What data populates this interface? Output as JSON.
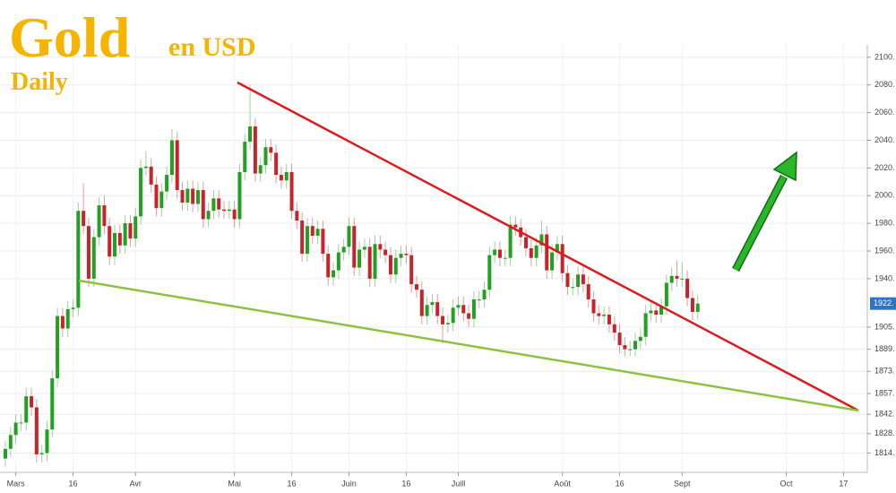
{
  "chart_data": {
    "type": "candlestick",
    "title": "Gold",
    "subtitle": "en USD",
    "period": "Daily",
    "up_color": "#22a022",
    "down_color": "#c8232b",
    "grid": true,
    "ylim": [
      1800,
      2109
    ],
    "yticks": [
      {
        "value": 2100,
        "label": "2100."
      },
      {
        "value": 2080,
        "label": "2080."
      },
      {
        "value": 2060,
        "label": "2060."
      },
      {
        "value": 2040,
        "label": "2040."
      },
      {
        "value": 2020,
        "label": "2020."
      },
      {
        "value": 2000,
        "label": "2000."
      },
      {
        "value": 1980,
        "label": "1980."
      },
      {
        "value": 1960,
        "label": "1960."
      },
      {
        "value": 1940,
        "label": "1940."
      },
      {
        "value": 1905,
        "label": "1905."
      },
      {
        "value": 1889,
        "label": "1889."
      },
      {
        "value": 1873,
        "label": "1873."
      },
      {
        "value": 1857,
        "label": "1857."
      },
      {
        "value": 1842,
        "label": "1842."
      },
      {
        "value": 1828,
        "label": "1828."
      },
      {
        "value": 1814,
        "label": "1814."
      }
    ],
    "price_label": {
      "value": 1922,
      "label": "1922."
    },
    "categories": [
      null,
      null,
      "Mars",
      null,
      null,
      null,
      null,
      null,
      null,
      null,
      null,
      null,
      null,
      "16",
      null,
      null,
      null,
      null,
      null,
      null,
      null,
      null,
      null,
      null,
      null,
      "Avr",
      null,
      null,
      null,
      null,
      null,
      null,
      null,
      null,
      null,
      null,
      null,
      null,
      null,
      null,
      null,
      null,
      null,
      null,
      "Mai",
      null,
      null,
      null,
      null,
      null,
      null,
      null,
      null,
      null,
      null,
      "16",
      null,
      null,
      null,
      null,
      null,
      null,
      null,
      null,
      null,
      null,
      "Juin",
      null,
      null,
      null,
      null,
      null,
      null,
      null,
      null,
      null,
      null,
      "16",
      null,
      null,
      null,
      null,
      null,
      null,
      null,
      null,
      null,
      "Juill",
      null,
      null,
      null,
      null,
      null,
      null,
      null,
      null,
      null,
      null,
      null,
      null,
      null,
      null,
      null,
      null,
      null,
      null,
      null,
      "Août",
      null,
      null,
      null,
      null,
      null,
      null,
      null,
      null,
      null,
      null,
      "16",
      null,
      null,
      null,
      null,
      null,
      null,
      null,
      null,
      null,
      null,
      null,
      "Sept",
      null,
      null,
      null,
      null,
      null,
      null,
      null,
      null,
      null,
      null,
      null,
      null,
      null,
      null,
      null,
      null,
      null,
      null,
      null,
      "Oct",
      null,
      null,
      null,
      null,
      null,
      null,
      null,
      null,
      null,
      null,
      "17",
      null,
      null,
      null,
      null
    ],
    "open": [
      1810,
      1817,
      1827,
      1836,
      1836,
      1855,
      1847,
      1813,
      1814,
      1831,
      1868,
      1913,
      1904,
      1918,
      1919,
      1989,
      1978,
      1940,
      1970,
      1993,
      1978,
      1956,
      1973,
      1964,
      1980,
      1969,
      1985,
      2020,
      2021,
      2008,
      1991,
      2003,
      2015,
      2040,
      2004,
      1995,
      2005,
      1994,
      2004,
      1983,
      1989,
      1998,
      1990,
      1989,
      1990,
      1983,
      2017,
      2039,
      2050,
      2016,
      2022,
      2035,
      2031,
      2015,
      2011,
      2017,
      1989,
      1982,
      1958,
      1978,
      1971,
      1976,
      1958,
      1941,
      1946,
      1959,
      1963,
      1978,
      1948,
      1961,
      1963,
      1940,
      1965,
      1961,
      1957,
      1943,
      1955,
      1958,
      1957,
      1936,
      1932,
      1913,
      1921,
      1923,
      1913,
      1907,
      1908,
      1919,
      1921,
      1915,
      1911,
      1925,
      1925,
      1932,
      1957,
      1961,
      1955,
      1955,
      1979,
      1977,
      1970,
      1962,
      1955,
      1964,
      1972,
      1946,
      1959,
      1965,
      1944,
      1934,
      1934,
      1943,
      1936,
      1925,
      1915,
      1913,
      1914,
      1907,
      1901,
      1892,
      1889,
      1889,
      1895,
      1898,
      1915,
      1917,
      1914,
      1920,
      1937,
      1942,
      1940,
      1940,
      1926,
      1916,
      null,
      null,
      null,
      null,
      null,
      null,
      null,
      null,
      null,
      null,
      null,
      null,
      null,
      null,
      null,
      null,
      null,
      null,
      null,
      null,
      null,
      null,
      null,
      null,
      null,
      null,
      null,
      null,
      null,
      null,
      null,
      null
    ],
    "high": [
      1823,
      1833,
      1842,
      1842,
      1861,
      1861,
      1853,
      1820,
      1837,
      1874,
      1919,
      1919,
      1924,
      1925,
      1995,
      2009,
      1984,
      1976,
      1999,
      2000,
      1984,
      1979,
      1979,
      1986,
      1986,
      1991,
      2026,
      2032,
      2027,
      2014,
      2009,
      2021,
      2048,
      2046,
      2010,
      2011,
      2011,
      2010,
      2010,
      1995,
      2004,
      2004,
      1996,
      1996,
      1996,
      2023,
      2045,
      2080,
      2056,
      2028,
      2041,
      2041,
      2037,
      2021,
      2023,
      2023,
      1995,
      1988,
      1984,
      1984,
      1982,
      1982,
      1964,
      1952,
      1965,
      1969,
      1984,
      1984,
      1967,
      1969,
      1969,
      1971,
      1971,
      1967,
      1963,
      1961,
      1964,
      1964,
      1963,
      1942,
      1938,
      1927,
      1929,
      1929,
      1919,
      1914,
      1925,
      1927,
      1927,
      1921,
      1931,
      1931,
      1938,
      1963,
      1967,
      1967,
      1961,
      1985,
      1985,
      1983,
      1976,
      1968,
      1970,
      1982,
      1978,
      1965,
      1971,
      1971,
      1950,
      1940,
      1949,
      1949,
      1942,
      1931,
      1921,
      1920,
      1920,
      1913,
      1907,
      1898,
      1895,
      1901,
      1904,
      1921,
      1923,
      1923,
      1926,
      1943,
      1948,
      1953,
      1952,
      1946,
      1932,
      1928,
      null,
      null,
      null,
      null,
      null,
      null,
      null,
      null,
      null,
      null,
      null,
      null,
      null,
      null,
      null,
      null,
      null,
      null,
      null,
      null,
      null,
      null,
      null,
      null,
      null,
      null,
      null,
      null,
      null,
      null,
      null,
      null
    ],
    "low": [
      1804,
      1811,
      1821,
      1830,
      1830,
      1841,
      1807,
      1807,
      1808,
      1825,
      1862,
      1898,
      1898,
      1912,
      1913,
      1972,
      1934,
      1934,
      1964,
      1972,
      1950,
      1950,
      1958,
      1958,
      1963,
      1963,
      1979,
      2014,
      2002,
      1985,
      1985,
      1997,
      2009,
      1998,
      1989,
      1989,
      1988,
      1988,
      1977,
      1977,
      1983,
      1984,
      1983,
      1983,
      1977,
      1977,
      2011,
      2033,
      2010,
      2010,
      2016,
      2025,
      2009,
      2005,
      2005,
      1983,
      1976,
      1952,
      1952,
      1965,
      1965,
      1952,
      1935,
      1935,
      1940,
      1953,
      1957,
      1942,
      1942,
      1955,
      1934,
      1934,
      1955,
      1951,
      1937,
      1937,
      1949,
      1951,
      1930,
      1926,
      1907,
      1907,
      1915,
      1907,
      1893,
      1901,
      1902,
      1913,
      1909,
      1905,
      1905,
      1919,
      1919,
      1926,
      1951,
      1949,
      1949,
      1949,
      1971,
      1964,
      1956,
      1949,
      1949,
      1958,
      1940,
      1940,
      1953,
      1938,
      1928,
      1928,
      1928,
      1930,
      1919,
      1909,
      1907,
      1907,
      1901,
      1895,
      1886,
      1884,
      1884,
      1884,
      1889,
      1892,
      1909,
      1908,
      1908,
      1914,
      1931,
      1934,
      1934,
      1920,
      1910,
      1910,
      null,
      null,
      null,
      null,
      null,
      null,
      null,
      null,
      null,
      null,
      null,
      null,
      null,
      null,
      null,
      null,
      null,
      null,
      null,
      null,
      null,
      null,
      null,
      null,
      null,
      null,
      null,
      null,
      null,
      null,
      null,
      null
    ],
    "close": [
      1817,
      1827,
      1836,
      1836,
      1855,
      1847,
      1813,
      1814,
      1831,
      1868,
      1913,
      1904,
      1918,
      1919,
      1989,
      1978,
      1940,
      1970,
      1993,
      1978,
      1956,
      1973,
      1964,
      1980,
      1969,
      1985,
      2020,
      2021,
      2008,
      1991,
      2003,
      2015,
      2040,
      2004,
      1995,
      2005,
      1994,
      2004,
      1983,
      1989,
      1998,
      1990,
      1989,
      1990,
      1983,
      2017,
      2039,
      2050,
      2016,
      2022,
      2035,
      2031,
      2015,
      2011,
      2017,
      1989,
      1982,
      1958,
      1978,
      1971,
      1976,
      1958,
      1941,
      1946,
      1959,
      1963,
      1978,
      1948,
      1961,
      1963,
      1940,
      1965,
      1961,
      1957,
      1943,
      1955,
      1958,
      1957,
      1936,
      1932,
      1913,
      1921,
      1923,
      1913,
      1907,
      1908,
      1919,
      1921,
      1915,
      1911,
      1925,
      1925,
      1932,
      1957,
      1961,
      1955,
      1955,
      1979,
      1977,
      1970,
      1962,
      1955,
      1964,
      1972,
      1946,
      1959,
      1965,
      1944,
      1934,
      1934,
      1943,
      1936,
      1925,
      1915,
      1913,
      1914,
      1907,
      1901,
      1892,
      1889,
      1889,
      1895,
      1898,
      1915,
      1917,
      1914,
      1920,
      1937,
      1942,
      1940,
      1940,
      1926,
      1916,
      1922,
      null,
      null,
      null,
      null,
      null,
      null,
      null,
      null,
      null,
      null,
      null,
      null,
      null,
      null,
      null,
      null,
      null,
      null,
      null,
      null,
      null,
      null,
      null,
      null,
      null,
      null,
      null,
      null,
      null,
      null,
      null,
      null
    ]
  }
}
